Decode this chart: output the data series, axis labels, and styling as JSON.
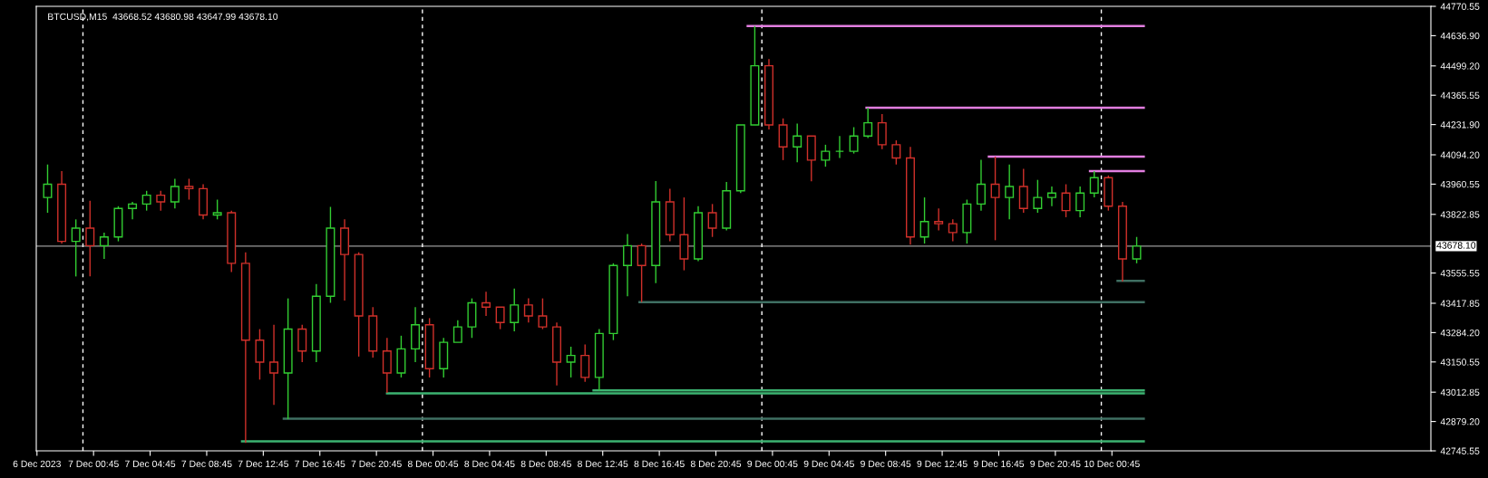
{
  "chart_data": {
    "type": "candlestick",
    "title": "BTCUSD,M15  43668.52 43680.98 43647.99 43678.10",
    "x": [
      "2023-12-06T21:30",
      "2023-12-06T22:30",
      "2023-12-06T23:30",
      "2023-12-07T00:30",
      "2023-12-07T01:30",
      "2023-12-07T02:30",
      "2023-12-07T03:30",
      "2023-12-07T04:30",
      "2023-12-07T05:30",
      "2023-12-07T06:30",
      "2023-12-07T07:30",
      "2023-12-07T08:30",
      "2023-12-07T09:30",
      "2023-12-07T10:30",
      "2023-12-07T11:30",
      "2023-12-07T12:30",
      "2023-12-07T13:30",
      "2023-12-07T14:30",
      "2023-12-07T15:30",
      "2023-12-07T16:30",
      "2023-12-07T17:30",
      "2023-12-07T18:30",
      "2023-12-07T19:30",
      "2023-12-07T20:30",
      "2023-12-07T21:30",
      "2023-12-07T22:30",
      "2023-12-07T23:30",
      "2023-12-08T00:30",
      "2023-12-08T01:30",
      "2023-12-08T02:30",
      "2023-12-08T03:30",
      "2023-12-08T04:30",
      "2023-12-08T05:30",
      "2023-12-08T06:30",
      "2023-12-08T07:30",
      "2023-12-08T08:30",
      "2023-12-08T09:30",
      "2023-12-08T10:30",
      "2023-12-08T11:30",
      "2023-12-08T12:30",
      "2023-12-08T13:30",
      "2023-12-08T14:30",
      "2023-12-08T15:30",
      "2023-12-08T16:30",
      "2023-12-08T17:30",
      "2023-12-08T18:30",
      "2023-12-08T19:30",
      "2023-12-08T20:30",
      "2023-12-08T21:30",
      "2023-12-08T22:30",
      "2023-12-08T23:30",
      "2023-12-09T00:30",
      "2023-12-09T01:30",
      "2023-12-09T02:30",
      "2023-12-09T03:30",
      "2023-12-09T04:30",
      "2023-12-09T05:30",
      "2023-12-09T06:30",
      "2023-12-09T07:30",
      "2023-12-09T08:30",
      "2023-12-09T09:30",
      "2023-12-09T10:30",
      "2023-12-09T11:30",
      "2023-12-09T12:30",
      "2023-12-09T13:30",
      "2023-12-09T14:30",
      "2023-12-09T15:30",
      "2023-12-09T16:30",
      "2023-12-09T17:30",
      "2023-12-09T18:30",
      "2023-12-09T19:30",
      "2023-12-09T20:30",
      "2023-12-09T21:30",
      "2023-12-09T22:30",
      "2023-12-09T23:30",
      "2023-12-10T00:30",
      "2023-12-10T01:30",
      "2023-12-10T02:30"
    ],
    "ohlc": [
      [
        43900,
        44050,
        43830,
        43960
      ],
      [
        43960,
        44020,
        43690,
        43700
      ],
      [
        43700,
        43800,
        43540,
        43760
      ],
      [
        43760,
        43885,
        43540,
        43680
      ],
      [
        43680,
        43740,
        43620,
        43720
      ],
      [
        43720,
        43860,
        43700,
        43850
      ],
      [
        43850,
        43880,
        43800,
        43870
      ],
      [
        43870,
        43930,
        43840,
        43910
      ],
      [
        43910,
        43930,
        43840,
        43880
      ],
      [
        43880,
        43985,
        43850,
        43950
      ],
      [
        43950,
        43985,
        43890,
        43940
      ],
      [
        43940,
        43960,
        43800,
        43820
      ],
      [
        43820,
        43890,
        43800,
        43830
      ],
      [
        43830,
        43840,
        43560,
        43600
      ],
      [
        43600,
        43650,
        42782,
        43250
      ],
      [
        43250,
        43300,
        43070,
        43150
      ],
      [
        43150,
        43320,
        42955,
        43100
      ],
      [
        43100,
        43440,
        42890,
        43300
      ],
      [
        43300,
        43320,
        43150,
        43200
      ],
      [
        43200,
        43505,
        43150,
        43450
      ],
      [
        43450,
        43857,
        43420,
        43760
      ],
      [
        43760,
        43800,
        43430,
        43640
      ],
      [
        43640,
        43650,
        43175,
        43360
      ],
      [
        43360,
        43400,
        43170,
        43200
      ],
      [
        43200,
        43260,
        43010,
        43100
      ],
      [
        43100,
        43270,
        43080,
        43210
      ],
      [
        43210,
        43400,
        43150,
        43320
      ],
      [
        43320,
        43350,
        43080,
        43120
      ],
      [
        43120,
        43260,
        43080,
        43240
      ],
      [
        43240,
        43340,
        43240,
        43310
      ],
      [
        43310,
        43440,
        43260,
        43420
      ],
      [
        43420,
        43470,
        43360,
        43400
      ],
      [
        43400,
        43400,
        43300,
        43330
      ],
      [
        43330,
        43485,
        43290,
        43410
      ],
      [
        43410,
        43440,
        43330,
        43360
      ],
      [
        43360,
        43440,
        43300,
        43310
      ],
      [
        43310,
        43330,
        43044,
        43150
      ],
      [
        43150,
        43220,
        43080,
        43180
      ],
      [
        43180,
        43230,
        43060,
        43080
      ],
      [
        43080,
        43300,
        43021,
        43280
      ],
      [
        43280,
        43600,
        43250,
        43590
      ],
      [
        43590,
        43733,
        43450,
        43680
      ],
      [
        43680,
        43690,
        43423,
        43590
      ],
      [
        43590,
        43975,
        43510,
        43880
      ],
      [
        43880,
        43940,
        43700,
        43730
      ],
      [
        43730,
        43900,
        43568,
        43620
      ],
      [
        43620,
        43860,
        43610,
        43830
      ],
      [
        43830,
        43870,
        43720,
        43760
      ],
      [
        43760,
        43970,
        43750,
        43930
      ],
      [
        43930,
        44230,
        43920,
        44230
      ],
      [
        44230,
        44681,
        44230,
        44500
      ],
      [
        44500,
        44530,
        44210,
        44230
      ],
      [
        44230,
        44260,
        44070,
        44130
      ],
      [
        44130,
        44236,
        44060,
        44180
      ],
      [
        44180,
        44180,
        43974,
        44070
      ],
      [
        44070,
        44140,
        44040,
        44110
      ],
      [
        44110,
        44180,
        44080,
        44110
      ],
      [
        44110,
        44220,
        44100,
        44180
      ],
      [
        44180,
        44309,
        44170,
        44240
      ],
      [
        44240,
        44280,
        44120,
        44140
      ],
      [
        44140,
        44160,
        44050,
        44080
      ],
      [
        44080,
        44130,
        43685,
        43720
      ],
      [
        43720,
        43900,
        43690,
        43790
      ],
      [
        43790,
        43850,
        43750,
        43780
      ],
      [
        43780,
        43800,
        43700,
        43740
      ],
      [
        43740,
        43890,
        43690,
        43870
      ],
      [
        43870,
        44071,
        43840,
        43960
      ],
      [
        43960,
        44086,
        43705,
        43900
      ],
      [
        43900,
        44050,
        43800,
        43950
      ],
      [
        43950,
        44030,
        43830,
        43850
      ],
      [
        43850,
        43980,
        43830,
        43900
      ],
      [
        43900,
        43950,
        43860,
        43920
      ],
      [
        43920,
        43960,
        43810,
        43840
      ],
      [
        43840,
        43950,
        43810,
        43920
      ],
      [
        43920,
        44020,
        43900,
        43990
      ],
      [
        43990,
        44000,
        43840,
        43860
      ],
      [
        43860,
        43880,
        43517,
        43620
      ],
      [
        43620,
        43720,
        43600,
        43678.1
      ]
    ],
    "colors": [
      "#32cd32",
      "#d0302a",
      "#32cd32",
      "#d0302a",
      "#32cd32",
      "#32cd32",
      "#32cd32",
      "#32cd32",
      "#d0302a",
      "#32cd32",
      "#d0302a",
      "#d0302a",
      "#32cd32",
      "#d0302a",
      "#d0302a",
      "#d0302a",
      "#d0302a",
      "#32cd32",
      "#d0302a",
      "#32cd32",
      "#32cd32",
      "#d0302a",
      "#d0302a",
      "#d0302a",
      "#d0302a",
      "#32cd32",
      "#32cd32",
      "#d0302a",
      "#32cd32",
      "#32cd32",
      "#32cd32",
      "#d0302a",
      "#d0302a",
      "#32cd32",
      "#d0302a",
      "#d0302a",
      "#d0302a",
      "#32cd32",
      "#d0302a",
      "#32cd32",
      "#32cd32",
      "#32cd32",
      "#d0302a",
      "#32cd32",
      "#d0302a",
      "#d0302a",
      "#32cd32",
      "#d0302a",
      "#32cd32",
      "#32cd32",
      "#32cd32",
      "#d0302a",
      "#d0302a",
      "#32cd32",
      "#d0302a",
      "#32cd32",
      "#32cd32",
      "#32cd32",
      "#32cd32",
      "#d0302a",
      "#d0302a",
      "#d0302a",
      "#32cd32",
      "#d0302a",
      "#d0302a",
      "#32cd32",
      "#32cd32",
      "#d0302a",
      "#32cd32",
      "#d0302a",
      "#32cd32",
      "#32cd32",
      "#d0302a",
      "#32cd32",
      "#32cd32",
      "#d0302a",
      "#d0302a",
      "#32cd32"
    ],
    "series": [
      {
        "type": "line",
        "color": "#e27ee0",
        "x": [
          "2023-12-08T23:00",
          "2023-12-10T03:00"
        ],
        "values": [
          44681,
          44681
        ]
      },
      {
        "type": "line",
        "color": "#e27ee0",
        "x": [
          "2023-12-09T07:24",
          "2023-12-10T03:00"
        ],
        "values": [
          44309,
          44309
        ]
      },
      {
        "type": "line",
        "color": "#e27ee0",
        "x": [
          "2023-12-09T16:03",
          "2023-12-10T03:00"
        ],
        "values": [
          44086,
          44086
        ]
      },
      {
        "type": "line",
        "color": "#e27ee0",
        "x": [
          "2023-12-09T23:12",
          "2023-12-10T03:00"
        ],
        "values": [
          44020,
          44020
        ]
      },
      {
        "type": "line",
        "color": "#3f6f62",
        "x": [
          "2023-12-10T01:09",
          "2023-12-10T03:00"
        ],
        "values": [
          43520,
          43520
        ]
      },
      {
        "type": "line",
        "color": "#3f6f62",
        "x": [
          "2023-12-08T15:21",
          "2023-12-10T03:00"
        ],
        "values": [
          43423,
          43423
        ]
      },
      {
        "type": "line",
        "color": "#3cb371",
        "x": [
          "2023-12-08T12:06",
          "2023-12-10T03:00"
        ],
        "values": [
          43021,
          43021
        ]
      },
      {
        "type": "line",
        "color": "#3cb371",
        "x": [
          "2023-12-07T21:30",
          "2023-12-10T03:00"
        ],
        "values": [
          43007,
          43007
        ]
      },
      {
        "type": "line",
        "color": "#3f6f62",
        "x": [
          "2023-12-07T14:12",
          "2023-12-10T03:00"
        ],
        "values": [
          42892,
          42892
        ]
      },
      {
        "type": "line",
        "color": "#3cb371",
        "x": [
          "2023-12-07T11:15",
          "2023-12-10T03:00"
        ],
        "values": [
          42789,
          42789
        ]
      }
    ],
    "ref_lines": [
      {
        "axis": "y",
        "value": 43678.1,
        "label": "43678.10",
        "color": "#9a9a9a",
        "line_style": "solid"
      },
      {
        "axis": "x",
        "value": "2023-12-07T00:00",
        "color": "#ffffff",
        "line_style": "dashed"
      },
      {
        "axis": "x",
        "value": "2023-12-08T00:00",
        "color": "#ffffff",
        "line_style": "dashed"
      },
      {
        "axis": "x",
        "value": "2023-12-09T00:00",
        "color": "#ffffff",
        "line_style": "dashed"
      },
      {
        "axis": "x",
        "value": "2023-12-10T00:00",
        "color": "#ffffff",
        "line_style": "dashed"
      }
    ],
    "xlim": [
      "2023-12-06T20:42",
      "2023-12-10T23:18"
    ],
    "ylim": [
      42745.55,
      44770.55
    ],
    "xticks": [
      {
        "value": "2023-12-06T20:45",
        "label": "6 Dec 2023"
      },
      {
        "value": "2023-12-07T00:45",
        "label": "7 Dec 00:45"
      },
      {
        "value": "2023-12-07T04:45",
        "label": "7 Dec 04:45"
      },
      {
        "value": "2023-12-07T08:45",
        "label": "7 Dec 08:45"
      },
      {
        "value": "2023-12-07T12:45",
        "label": "7 Dec 12:45"
      },
      {
        "value": "2023-12-07T16:45",
        "label": "7 Dec 16:45"
      },
      {
        "value": "2023-12-07T20:45",
        "label": "7 Dec 20:45"
      },
      {
        "value": "2023-12-08T00:45",
        "label": "8 Dec 00:45"
      },
      {
        "value": "2023-12-08T04:45",
        "label": "8 Dec 04:45"
      },
      {
        "value": "2023-12-08T08:45",
        "label": "8 Dec 08:45"
      },
      {
        "value": "2023-12-08T12:45",
        "label": "8 Dec 12:45"
      },
      {
        "value": "2023-12-08T16:45",
        "label": "8 Dec 16:45"
      },
      {
        "value": "2023-12-08T20:45",
        "label": "8 Dec 20:45"
      },
      {
        "value": "2023-12-09T00:45",
        "label": "9 Dec 00:45"
      },
      {
        "value": "2023-12-09T04:45",
        "label": "9 Dec 04:45"
      },
      {
        "value": "2023-12-09T08:45",
        "label": "9 Dec 08:45"
      },
      {
        "value": "2023-12-09T12:45",
        "label": "9 Dec 12:45"
      },
      {
        "value": "2023-12-09T16:45",
        "label": "9 Dec 16:45"
      },
      {
        "value": "2023-12-09T20:45",
        "label": "9 Dec 20:45"
      },
      {
        "value": "2023-12-10T00:45",
        "label": "10 Dec 00:45"
      }
    ],
    "yticks": [
      44770.55,
      {
        "value": 44636.9,
        "label": "44636.90"
      },
      {
        "value": 44499.2,
        "label": "44499.20"
      },
      44365.55,
      {
        "value": 44231.9,
        "label": "44231.90"
      },
      {
        "value": 44094.2,
        "label": "44094.20"
      },
      43960.55,
      43822.85,
      43555.55,
      43417.85,
      {
        "value": 43284.2,
        "label": "43284.20"
      },
      43150.55,
      43012.85,
      {
        "value": 42879.2,
        "label": "42879.20"
      },
      42745.55
    ],
    "grid": false,
    "legend": false
  }
}
